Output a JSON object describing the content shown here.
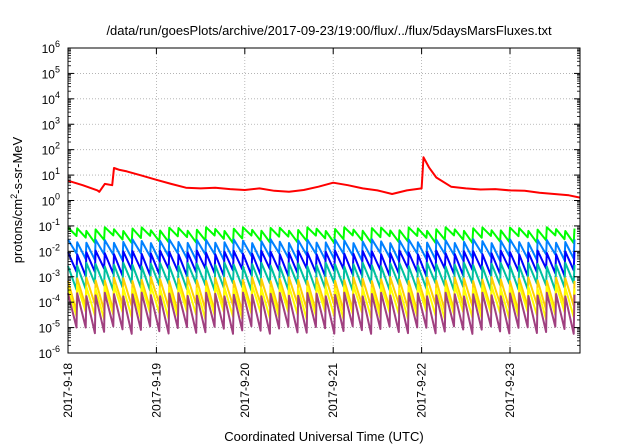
{
  "chart_data": {
    "type": "line",
    "title": "/data/run/goesPlots/archive/2017-09-23/19:00/flux/../flux/5daysMarsFluxes.txt",
    "xlabel": "Coordinated Universal Time (UTC)",
    "ylabel": "protons/cm²-s-sr-MeV",
    "ylabel_parts": {
      "base": "protons/cm",
      "sup": "2",
      "rest": "-s-sr-MeV"
    },
    "yscale": "log",
    "ylim": [
      1e-06,
      1000000.0
    ],
    "xlim": [
      "2017-09-18T00:00",
      "2017-09-23T19:00"
    ],
    "x_ticks": [
      "2017-9-18",
      "2017-9-19",
      "2017-9-20",
      "2017-9-21",
      "2017-9-22",
      "2017-9-23"
    ],
    "y_ticks": [
      {
        "base": "10",
        "exp": "-6"
      },
      {
        "base": "10",
        "exp": "-5"
      },
      {
        "base": "10",
        "exp": "-4"
      },
      {
        "base": "10",
        "exp": "-3"
      },
      {
        "base": "10",
        "exp": "-2"
      },
      {
        "base": "10",
        "exp": "-1"
      },
      {
        "base": "10",
        "exp": "0"
      },
      {
        "base": "10",
        "exp": "1"
      },
      {
        "base": "10",
        "exp": "2"
      },
      {
        "base": "10",
        "exp": "3"
      },
      {
        "base": "10",
        "exp": "4"
      },
      {
        "base": "10",
        "exp": "5"
      },
      {
        "base": "10",
        "exp": "6"
      }
    ],
    "grid": true,
    "series": [
      {
        "color": "#ff0000",
        "x": [
          "2017-09-18T00:00",
          "2017-09-18T04:00",
          "2017-09-18T08:00",
          "2017-09-18T08:30",
          "2017-09-18T10:00",
          "2017-09-18T12:00",
          "2017-09-18T12:30",
          "2017-09-18T14:00",
          "2017-09-18T16:00",
          "2017-09-18T20:00",
          "2017-09-19T00:00",
          "2017-09-19T04:00",
          "2017-09-19T08:00",
          "2017-09-19T12:00",
          "2017-09-19T16:00",
          "2017-09-19T20:00",
          "2017-09-20T00:00",
          "2017-09-20T04:00",
          "2017-09-20T08:00",
          "2017-09-20T12:00",
          "2017-09-20T16:00",
          "2017-09-20T20:00",
          "2017-09-21T00:00",
          "2017-09-21T04:00",
          "2017-09-21T08:00",
          "2017-09-21T12:00",
          "2017-09-21T16:00",
          "2017-09-21T20:00",
          "2017-09-22T00:00",
          "2017-09-22T00:30",
          "2017-09-22T02:00",
          "2017-09-22T04:00",
          "2017-09-22T08:00",
          "2017-09-22T12:00",
          "2017-09-22T16:00",
          "2017-09-22T20:00",
          "2017-09-23T00:00",
          "2017-09-23T04:00",
          "2017-09-23T08:00",
          "2017-09-23T12:00",
          "2017-09-23T16:00",
          "2017-09-23T19:00"
        ],
        "values": [
          6,
          4,
          2.5,
          2.2,
          4.5,
          4,
          19,
          16,
          14,
          9.5,
          6.5,
          4.5,
          3.2,
          3,
          3.2,
          2.8,
          2.6,
          3,
          2.4,
          2.2,
          2.6,
          3.5,
          5,
          4,
          3,
          2.5,
          1.8,
          2.5,
          3,
          50,
          20,
          8,
          3.5,
          3,
          2.7,
          2.8,
          2.5,
          2.4,
          2,
          1.8,
          1.6,
          1.3
        ]
      },
      {
        "color": "#00ff00",
        "base": 0.04,
        "peak": 0.075,
        "trough": 0.03,
        "sawtooth": true
      },
      {
        "color": "#0080ff",
        "base": 0.012,
        "peak": 0.025,
        "trough": 0.006,
        "sawtooth": true
      },
      {
        "color": "#0000ff",
        "base": 0.004,
        "peak": 0.009,
        "trough": 0.0015,
        "sawtooth": true
      },
      {
        "color": "#00c0a0",
        "base": 0.0008,
        "peak": 0.003,
        "trough": 0.0004,
        "sawtooth": true
      },
      {
        "color": "#ffd000",
        "base": 0.0002,
        "peak": 0.0008,
        "trough": 6e-05,
        "sawtooth": true
      },
      {
        "color": "#ffff00",
        "base": 0.0001,
        "peak": 0.0004,
        "trough": 3e-05,
        "sawtooth": true
      },
      {
        "color": "#a04080",
        "base": 3e-05,
        "peak": 0.0002,
        "trough": 8e-06,
        "sawtooth": true
      }
    ],
    "sawtooth_period_hours": 2.5
  }
}
